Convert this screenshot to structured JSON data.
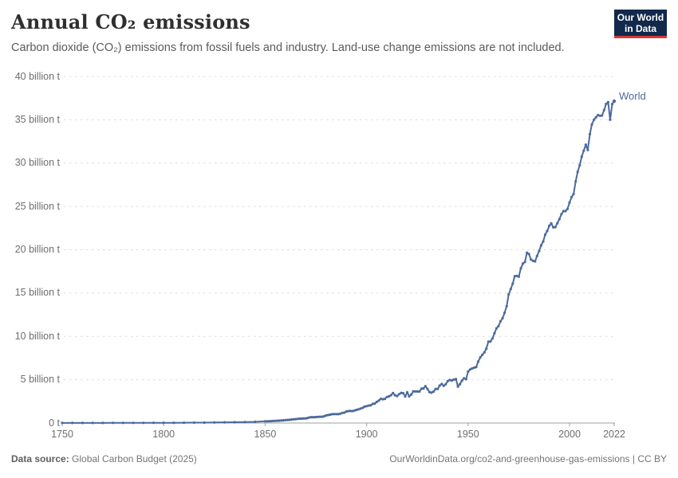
{
  "header": {
    "title": "Annual CO₂ emissions",
    "subtitle": "Carbon dioxide (CO₂) emissions from fossil fuels and industry. Land-use change emissions are not included.",
    "logo": {
      "line1": "Our World",
      "line2": "in Data",
      "bg_color": "#12294b",
      "accent_color": "#d93a34"
    }
  },
  "footer": {
    "source_label": "Data source:",
    "source_value": " Global Carbon Budget (2025)",
    "citation": "OurWorldinData.org/co2-and-greenhouse-gas-emissions | CC BY"
  },
  "chart_data": {
    "type": "line",
    "title": "Annual CO₂ emissions",
    "xlabel": "",
    "ylabel": "",
    "x_axis": {
      "ticks": [
        1750,
        1800,
        1850,
        1900,
        1950,
        2000,
        2022
      ],
      "range": [
        1750,
        2022
      ]
    },
    "y_axis": {
      "tick_values": [
        0,
        5,
        10,
        15,
        20,
        25,
        30,
        35,
        40
      ],
      "labels": [
        "0 t",
        "5 billion t",
        "10 billion t",
        "15 billion t",
        "20 billion t",
        "25 billion t",
        "30 billion t",
        "35 billion t",
        "40 billion t"
      ],
      "range": [
        0,
        40
      ],
      "grid": "dashed",
      "grid_color": "#dcdcdc",
      "axis_color": "#a0a0a0"
    },
    "legend_position": "end-of-line-label",
    "series": [
      {
        "name": "World",
        "color": "#4C6A9C",
        "unit": "billion t",
        "points": [
          [
            1750,
            0.01
          ],
          [
            1755,
            0.01
          ],
          [
            1760,
            0.01
          ],
          [
            1765,
            0.01
          ],
          [
            1770,
            0.01
          ],
          [
            1775,
            0.02
          ],
          [
            1780,
            0.02
          ],
          [
            1785,
            0.02
          ],
          [
            1790,
            0.02
          ],
          [
            1795,
            0.03
          ],
          [
            1800,
            0.03
          ],
          [
            1805,
            0.03
          ],
          [
            1810,
            0.04
          ],
          [
            1815,
            0.05
          ],
          [
            1820,
            0.05
          ],
          [
            1825,
            0.06
          ],
          [
            1830,
            0.08
          ],
          [
            1835,
            0.09
          ],
          [
            1840,
            0.11
          ],
          [
            1845,
            0.14
          ],
          [
            1850,
            0.2
          ],
          [
            1851,
            0.2
          ],
          [
            1852,
            0.21
          ],
          [
            1853,
            0.22
          ],
          [
            1854,
            0.24
          ],
          [
            1855,
            0.25
          ],
          [
            1856,
            0.27
          ],
          [
            1857,
            0.28
          ],
          [
            1858,
            0.29
          ],
          [
            1859,
            0.31
          ],
          [
            1860,
            0.34
          ],
          [
            1861,
            0.36
          ],
          [
            1862,
            0.37
          ],
          [
            1863,
            0.4
          ],
          [
            1864,
            0.43
          ],
          [
            1865,
            0.45
          ],
          [
            1866,
            0.48
          ],
          [
            1867,
            0.51
          ],
          [
            1868,
            0.51
          ],
          [
            1869,
            0.53
          ],
          [
            1870,
            0.53
          ],
          [
            1871,
            0.59
          ],
          [
            1872,
            0.65
          ],
          [
            1873,
            0.68
          ],
          [
            1874,
            0.67
          ],
          [
            1875,
            0.69
          ],
          [
            1876,
            0.71
          ],
          [
            1877,
            0.73
          ],
          [
            1878,
            0.73
          ],
          [
            1879,
            0.77
          ],
          [
            1880,
            0.87
          ],
          [
            1881,
            0.92
          ],
          [
            1882,
            0.97
          ],
          [
            1883,
            1.02
          ],
          [
            1884,
            1.03
          ],
          [
            1885,
            1.03
          ],
          [
            1886,
            1.02
          ],
          [
            1887,
            1.08
          ],
          [
            1888,
            1.17
          ],
          [
            1889,
            1.2
          ],
          [
            1890,
            1.33
          ],
          [
            1891,
            1.38
          ],
          [
            1892,
            1.39
          ],
          [
            1893,
            1.38
          ],
          [
            1894,
            1.44
          ],
          [
            1895,
            1.52
          ],
          [
            1896,
            1.58
          ],
          [
            1897,
            1.66
          ],
          [
            1898,
            1.75
          ],
          [
            1899,
            1.89
          ],
          [
            1900,
            1.95
          ],
          [
            1901,
            2.01
          ],
          [
            1902,
            2.05
          ],
          [
            1903,
            2.21
          ],
          [
            1904,
            2.25
          ],
          [
            1905,
            2.44
          ],
          [
            1906,
            2.58
          ],
          [
            1907,
            2.8
          ],
          [
            1908,
            2.75
          ],
          [
            1909,
            2.79
          ],
          [
            1910,
            3.01
          ],
          [
            1911,
            3.07
          ],
          [
            1912,
            3.21
          ],
          [
            1913,
            3.46
          ],
          [
            1914,
            3.21
          ],
          [
            1915,
            3.12
          ],
          [
            1916,
            3.33
          ],
          [
            1917,
            3.48
          ],
          [
            1918,
            3.45
          ],
          [
            1919,
            3.07
          ],
          [
            1920,
            3.55
          ],
          [
            1921,
            3.08
          ],
          [
            1922,
            3.28
          ],
          [
            1923,
            3.66
          ],
          [
            1924,
            3.64
          ],
          [
            1925,
            3.64
          ],
          [
            1926,
            3.63
          ],
          [
            1927,
            3.96
          ],
          [
            1928,
            3.99
          ],
          [
            1929,
            4.26
          ],
          [
            1930,
            3.94
          ],
          [
            1931,
            3.57
          ],
          [
            1932,
            3.5
          ],
          [
            1933,
            3.63
          ],
          [
            1934,
            3.94
          ],
          [
            1935,
            3.94
          ],
          [
            1936,
            4.32
          ],
          [
            1937,
            4.51
          ],
          [
            1938,
            4.29
          ],
          [
            1939,
            4.48
          ],
          [
            1940,
            4.85
          ],
          [
            1941,
            4.97
          ],
          [
            1942,
            4.91
          ],
          [
            1943,
            5.02
          ],
          [
            1944,
            5.07
          ],
          [
            1945,
            4.2
          ],
          [
            1946,
            4.49
          ],
          [
            1947,
            4.88
          ],
          [
            1948,
            5.17
          ],
          [
            1949,
            5.06
          ],
          [
            1950,
            5.93
          ],
          [
            1951,
            6.18
          ],
          [
            1952,
            6.3
          ],
          [
            1953,
            6.39
          ],
          [
            1954,
            6.46
          ],
          [
            1955,
            7.09
          ],
          [
            1956,
            7.58
          ],
          [
            1957,
            7.86
          ],
          [
            1958,
            8.15
          ],
          [
            1959,
            8.58
          ],
          [
            1960,
            9.39
          ],
          [
            1961,
            9.41
          ],
          [
            1962,
            9.77
          ],
          [
            1963,
            10.35
          ],
          [
            1964,
            10.93
          ],
          [
            1965,
            11.19
          ],
          [
            1966,
            11.74
          ],
          [
            1967,
            12.1
          ],
          [
            1968,
            12.73
          ],
          [
            1969,
            13.48
          ],
          [
            1970,
            14.85
          ],
          [
            1971,
            15.47
          ],
          [
            1972,
            16.09
          ],
          [
            1973,
            16.95
          ],
          [
            1974,
            16.98
          ],
          [
            1975,
            16.89
          ],
          [
            1976,
            17.87
          ],
          [
            1977,
            18.4
          ],
          [
            1978,
            18.59
          ],
          [
            1979,
            19.66
          ],
          [
            1980,
            19.5
          ],
          [
            1981,
            18.87
          ],
          [
            1982,
            18.72
          ],
          [
            1983,
            18.66
          ],
          [
            1984,
            19.29
          ],
          [
            1985,
            19.86
          ],
          [
            1986,
            20.51
          ],
          [
            1987,
            20.96
          ],
          [
            1988,
            21.75
          ],
          [
            1989,
            22.16
          ],
          [
            1990,
            22.76
          ],
          [
            1991,
            23.05
          ],
          [
            1992,
            22.58
          ],
          [
            1993,
            22.61
          ],
          [
            1994,
            23.07
          ],
          [
            1995,
            23.53
          ],
          [
            1996,
            24.11
          ],
          [
            1997,
            24.46
          ],
          [
            1998,
            24.46
          ],
          [
            1999,
            24.71
          ],
          [
            2000,
            25.45
          ],
          [
            2001,
            26.08
          ],
          [
            2002,
            26.43
          ],
          [
            2003,
            27.88
          ],
          [
            2004,
            28.99
          ],
          [
            2005,
            29.76
          ],
          [
            2006,
            30.75
          ],
          [
            2007,
            31.42
          ],
          [
            2008,
            32.13
          ],
          [
            2009,
            31.51
          ],
          [
            2010,
            33.34
          ],
          [
            2011,
            34.46
          ],
          [
            2012,
            35.0
          ],
          [
            2013,
            35.27
          ],
          [
            2014,
            35.54
          ],
          [
            2015,
            35.47
          ],
          [
            2016,
            35.49
          ],
          [
            2017,
            36.1
          ],
          [
            2018,
            36.83
          ],
          [
            2019,
            37.04
          ],
          [
            2020,
            35.01
          ],
          [
            2021,
            36.82
          ],
          [
            2022,
            37.15
          ]
        ]
      }
    ]
  }
}
